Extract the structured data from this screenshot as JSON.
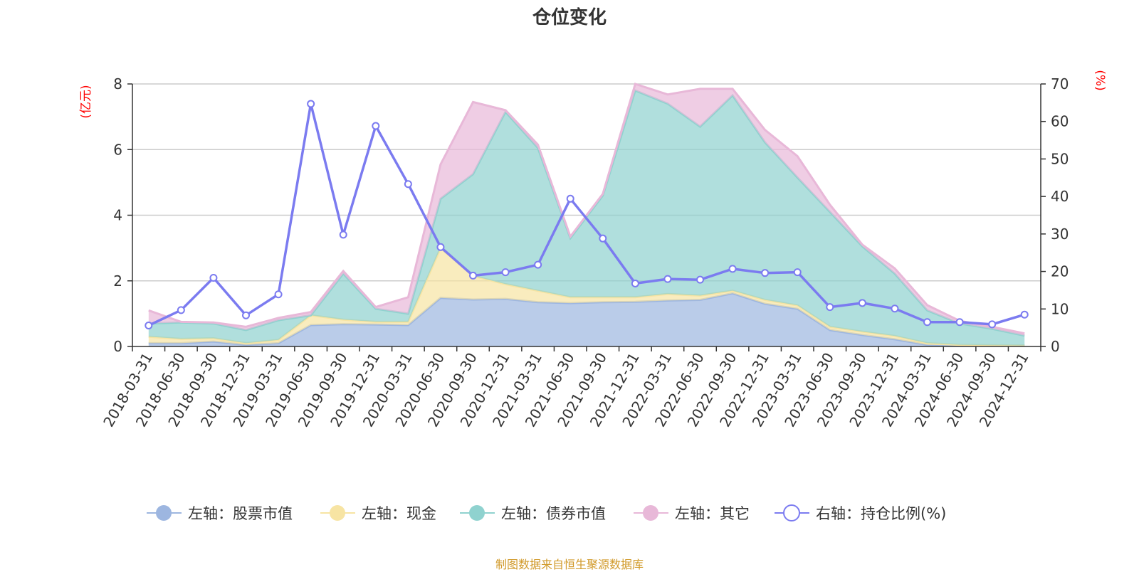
{
  "chart_data": {
    "type": "area",
    "title": "仓位变化",
    "left_axis_unit": "(亿元)",
    "right_axis_unit": "(%)",
    "ylim_left": [
      0,
      8
    ],
    "yticks_left": [
      0,
      2,
      4,
      6,
      8
    ],
    "ylim_right": [
      0,
      70
    ],
    "yticks_right": [
      0,
      10,
      20,
      30,
      40,
      50,
      60,
      70
    ],
    "grid": true,
    "legend_position": "bottom",
    "stacked": true,
    "categories": [
      "2018-03-31",
      "2018-06-30",
      "2018-09-30",
      "2018-12-31",
      "2019-03-31",
      "2019-06-30",
      "2019-09-30",
      "2019-12-31",
      "2020-03-31",
      "2020-06-30",
      "2020-09-30",
      "2020-12-31",
      "2021-03-31",
      "2021-06-30",
      "2021-09-30",
      "2021-12-31",
      "2022-03-31",
      "2022-06-30",
      "2022-09-30",
      "2022-12-31",
      "2023-03-31",
      "2023-06-30",
      "2023-09-30",
      "2023-12-31",
      "2024-03-31",
      "2024-06-30",
      "2024-09-30",
      "2024-12-31"
    ],
    "series": [
      {
        "name": "左轴：股票市值",
        "axis": "left",
        "color": "#9db6e0",
        "values": [
          0.1,
          0.1,
          0.15,
          0.05,
          0.1,
          0.65,
          0.68,
          0.67,
          0.65,
          1.48,
          1.43,
          1.45,
          1.35,
          1.32,
          1.35,
          1.36,
          1.4,
          1.42,
          1.62,
          1.3,
          1.15,
          0.5,
          0.35,
          0.22,
          0.05,
          0.03,
          0.03,
          0.03
        ]
      },
      {
        "name": "左轴：现金",
        "axis": "left",
        "color": "#f7e4a3",
        "values": [
          0.2,
          0.13,
          0.1,
          0.05,
          0.1,
          0.3,
          0.14,
          0.08,
          0.1,
          1.52,
          0.72,
          0.45,
          0.35,
          0.18,
          0.15,
          0.14,
          0.2,
          0.13,
          0.08,
          0.12,
          0.1,
          0.1,
          0.1,
          0.1,
          0.05,
          0.02,
          0.01,
          0.0
        ]
      },
      {
        "name": "左轴：债券市值",
        "axis": "left",
        "color": "#8fd2cf",
        "values": [
          0.4,
          0.5,
          0.45,
          0.4,
          0.6,
          0.0,
          1.4,
          0.4,
          0.25,
          1.5,
          3.1,
          5.25,
          4.35,
          1.8,
          3.1,
          6.3,
          5.8,
          5.15,
          5.95,
          4.8,
          3.9,
          3.5,
          2.6,
          1.9,
          1.0,
          0.65,
          0.5,
          0.3
        ]
      },
      {
        "name": "左轴：其它",
        "axis": "left",
        "color": "#e8b8d8",
        "values": [
          0.4,
          0.02,
          0.03,
          0.1,
          0.07,
          0.1,
          0.08,
          0.05,
          0.5,
          1.05,
          2.2,
          0.05,
          0.1,
          0.05,
          0.05,
          0.2,
          0.28,
          1.15,
          0.2,
          0.38,
          0.65,
          0.22,
          0.05,
          0.16,
          0.16,
          0.08,
          0.06,
          0.07
        ]
      },
      {
        "name": "右轴：持仓比例(%)",
        "axis": "right",
        "color": "#7b7bf0",
        "values": [
          5.6,
          9.7,
          18.3,
          8.3,
          13.9,
          64.7,
          29.8,
          58.8,
          43.3,
          26.5,
          18.9,
          19.8,
          21.8,
          39.4,
          28.8,
          16.8,
          18.0,
          17.8,
          20.7,
          19.6,
          19.8,
          10.5,
          11.6,
          10.1,
          6.5,
          6.5,
          5.9,
          8.5
        ]
      }
    ]
  },
  "footer": {
    "source": "制图数据来自恒生聚源数据库",
    "source_color": "#d19a2a"
  },
  "colors": {
    "unit_label": "#ff0000",
    "ratio_line": "#7b7bf0"
  }
}
